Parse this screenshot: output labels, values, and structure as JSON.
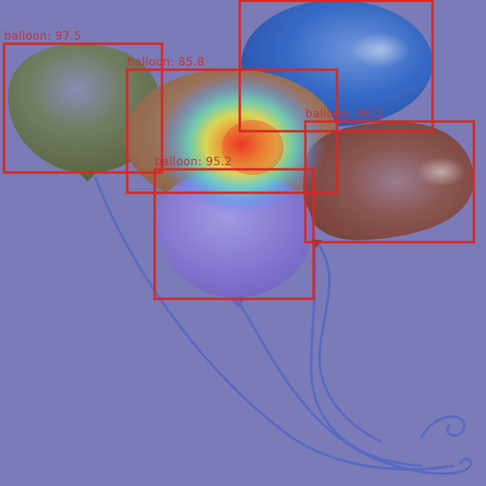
{
  "image": {
    "background_color": "#7b7cb8",
    "box_color": "#d42a26",
    "label_color": "#c0353d"
  },
  "detections": [
    {
      "label": "balloon: 97.5"
    },
    {
      "label": "balloon: 85.8"
    },
    {
      "label": "balloon: 96.2"
    },
    {
      "label": "balloon: 95.2"
    },
    {
      "label": ""
    }
  ]
}
